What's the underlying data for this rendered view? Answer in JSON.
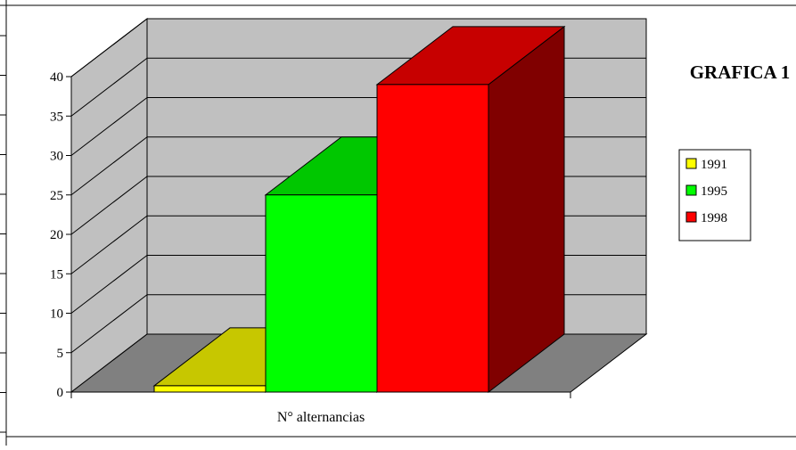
{
  "chart_data": {
    "type": "bar",
    "title": "GRAFICA 1",
    "categories": [
      "N° alternancias"
    ],
    "xlabel": "N° alternancias",
    "ylabel": "",
    "ylim": [
      0,
      40
    ],
    "yticks": [
      "0",
      "5",
      "10",
      "15",
      "20",
      "25",
      "30",
      "35",
      "40"
    ],
    "series": [
      {
        "name": "1991",
        "values": [
          0.8
        ],
        "color": "#ffff00"
      },
      {
        "name": "1995",
        "values": [
          25
        ],
        "color": "#00ff00"
      },
      {
        "name": "1998",
        "values": [
          39
        ],
        "color": "#ff0000"
      }
    ],
    "legend_position": "right",
    "grid": true,
    "style": "3d-column",
    "wall_color": "#c0c0c0",
    "floor_color": "#808080"
  }
}
